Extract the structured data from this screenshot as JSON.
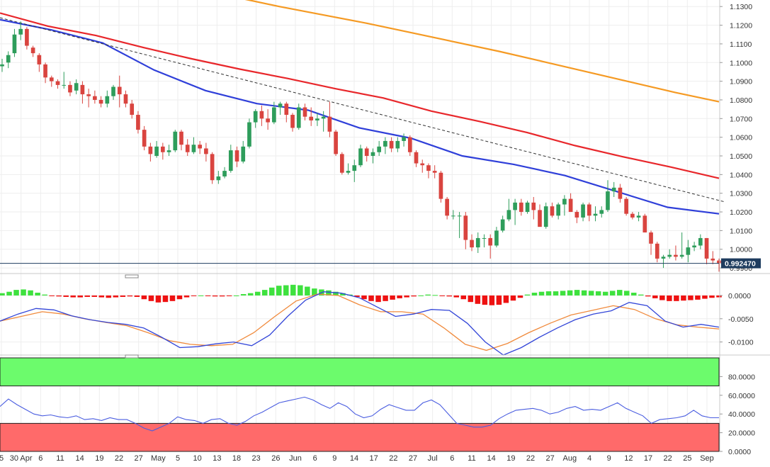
{
  "chart_data": {
    "type": "candlestick",
    "instrument_price_label": "0.992470",
    "colors": {
      "up": "#2e9d5b",
      "down": "#d9443f",
      "sma_red": "#e8272b",
      "sma_orange": "#f59a23",
      "sma_blue": "#2f3fd9",
      "macd_pos": "#3ee13e",
      "macd_neg": "#ee1111",
      "rsi_high_zone": "#6cfb6c",
      "rsi_low_zone": "#ff6a6a",
      "rsi_line": "#4a5de0",
      "price_tag_bg": "#1e3c5f"
    },
    "x_labels": [
      "5",
      "30 Apr",
      "6",
      "11",
      "14",
      "19",
      "22",
      "27",
      "May",
      "5",
      "10",
      "13",
      "18",
      "23",
      "26",
      "Jun",
      "6",
      "9",
      "14",
      "17",
      "22",
      "27",
      "Jul",
      "6",
      "11",
      "14",
      "19",
      "22",
      "27",
      "Aug",
      "4",
      "9",
      "12",
      "17",
      "22",
      "25",
      "Sep"
    ],
    "price_panel": {
      "yticks": [
        "1.1300",
        "1.1200",
        "1.1100",
        "1.1000",
        "1.0900",
        "1.0800",
        "1.0700",
        "1.0600",
        "1.0500",
        "1.0400",
        "1.0300",
        "1.0200",
        "1.0100",
        "1.0000",
        "0.9900"
      ],
      "ytick_values": [
        1.13,
        1.12,
        1.11,
        1.1,
        1.09,
        1.08,
        1.07,
        1.06,
        1.05,
        1.04,
        1.03,
        1.02,
        1.01,
        1.0,
        0.99
      ],
      "ylim": [
        0.987,
        1.1335
      ],
      "current_price": 0.99247,
      "candles": [
        [
          1.098,
          1.102,
          1.095,
          1.099
        ],
        [
          1.1,
          1.106,
          1.097,
          1.104
        ],
        [
          1.105,
          1.118,
          1.103,
          1.115
        ],
        [
          1.115,
          1.122,
          1.112,
          1.118
        ],
        [
          1.118,
          1.119,
          1.107,
          1.109
        ],
        [
          1.108,
          1.109,
          1.103,
          1.105
        ],
        [
          1.104,
          1.105,
          1.095,
          1.099
        ],
        [
          1.099,
          1.1,
          1.089,
          1.092
        ],
        [
          1.092,
          1.093,
          1.087,
          1.09
        ],
        [
          1.09,
          1.091,
          1.086,
          1.088
        ],
        [
          1.088,
          1.095,
          1.086,
          1.088
        ],
        [
          1.088,
          1.09,
          1.082,
          1.084
        ],
        [
          1.085,
          1.091,
          1.083,
          1.089
        ],
        [
          1.088,
          1.09,
          1.078,
          1.083
        ],
        [
          1.083,
          1.086,
          1.076,
          1.082
        ],
        [
          1.082,
          1.085,
          1.078,
          1.08
        ],
        [
          1.08,
          1.082,
          1.076,
          1.078
        ],
        [
          1.078,
          1.085,
          1.076,
          1.082
        ],
        [
          1.082,
          1.088,
          1.08,
          1.087
        ],
        [
          1.087,
          1.093,
          1.076,
          1.083
        ],
        [
          1.083,
          1.085,
          1.076,
          1.078
        ],
        [
          1.078,
          1.08,
          1.07,
          1.072
        ],
        [
          1.072,
          1.074,
          1.062,
          1.064
        ],
        [
          1.064,
          1.066,
          1.053,
          1.055
        ],
        [
          1.055,
          1.057,
          1.047,
          1.051
        ],
        [
          1.05,
          1.058,
          1.049,
          1.055
        ],
        [
          1.055,
          1.057,
          1.048,
          1.052
        ],
        [
          1.052,
          1.056,
          1.05,
          1.053
        ],
        [
          1.053,
          1.064,
          1.052,
          1.063
        ],
        [
          1.063,
          1.064,
          1.053,
          1.056
        ],
        [
          1.056,
          1.059,
          1.05,
          1.052
        ],
        [
          1.052,
          1.06,
          1.051,
          1.056
        ],
        [
          1.056,
          1.058,
          1.051,
          1.054
        ],
        [
          1.054,
          1.057,
          1.047,
          1.051
        ],
        [
          1.051,
          1.052,
          1.035,
          1.037
        ],
        [
          1.037,
          1.042,
          1.035,
          1.039
        ],
        [
          1.039,
          1.044,
          1.038,
          1.042
        ],
        [
          1.042,
          1.056,
          1.041,
          1.053
        ],
        [
          1.053,
          1.055,
          1.044,
          1.047
        ],
        [
          1.047,
          1.058,
          1.046,
          1.055
        ],
        [
          1.055,
          1.07,
          1.054,
          1.068
        ],
        [
          1.068,
          1.075,
          1.065,
          1.074
        ],
        [
          1.074,
          1.077,
          1.066,
          1.07
        ],
        [
          1.07,
          1.075,
          1.064,
          1.068
        ],
        [
          1.068,
          1.079,
          1.067,
          1.076
        ],
        [
          1.076,
          1.079,
          1.072,
          1.078
        ],
        [
          1.078,
          1.079,
          1.068,
          1.072
        ],
        [
          1.072,
          1.073,
          1.063,
          1.065
        ],
        [
          1.065,
          1.078,
          1.064,
          1.076
        ],
        [
          1.076,
          1.078,
          1.069,
          1.071
        ],
        [
          1.071,
          1.076,
          1.066,
          1.069
        ],
        [
          1.069,
          1.073,
          1.066,
          1.07
        ],
        [
          1.07,
          1.074,
          1.063,
          1.071
        ],
        [
          1.071,
          1.079,
          1.06,
          1.063
        ],
        [
          1.063,
          1.064,
          1.05,
          1.051
        ],
        [
          1.051,
          1.052,
          1.04,
          1.041
        ],
        [
          1.041,
          1.046,
          1.04,
          1.042
        ],
        [
          1.042,
          1.048,
          1.036,
          1.045
        ],
        [
          1.045,
          1.056,
          1.044,
          1.054
        ],
        [
          1.054,
          1.055,
          1.047,
          1.05
        ],
        [
          1.05,
          1.054,
          1.046,
          1.052
        ],
        [
          1.052,
          1.058,
          1.05,
          1.055
        ],
        [
          1.055,
          1.06,
          1.051,
          1.058
        ],
        [
          1.058,
          1.06,
          1.052,
          1.054
        ],
        [
          1.054,
          1.06,
          1.052,
          1.058
        ],
        [
          1.058,
          1.062,
          1.055,
          1.06
        ],
        [
          1.06,
          1.061,
          1.05,
          1.052
        ],
        [
          1.052,
          1.053,
          1.044,
          1.046
        ],
        [
          1.046,
          1.048,
          1.041,
          1.045
        ],
        [
          1.045,
          1.046,
          1.038,
          1.042
        ],
        [
          1.042,
          1.045,
          1.038,
          1.041
        ],
        [
          1.041,
          1.042,
          1.025,
          1.027
        ],
        [
          1.027,
          1.028,
          1.016,
          1.018
        ],
        [
          1.018,
          1.021,
          1.016,
          1.018
        ],
        [
          1.018,
          1.02,
          1.006,
          1.018
        ],
        [
          1.018,
          1.02,
          1.0,
          1.005
        ],
        [
          1.005,
          1.008,
          0.999,
          1.001
        ],
        [
          1.001,
          1.009,
          0.998,
          1.006
        ],
        [
          1.006,
          1.008,
          1.001,
          1.006
        ],
        [
          1.006,
          1.008,
          0.995,
          1.002
        ],
        [
          1.002,
          1.012,
          1.001,
          1.01
        ],
        [
          1.01,
          1.018,
          1.009,
          1.016
        ],
        [
          1.016,
          1.027,
          1.015,
          1.021
        ],
        [
          1.021,
          1.027,
          1.013,
          1.025
        ],
        [
          1.025,
          1.027,
          1.018,
          1.02
        ],
        [
          1.02,
          1.026,
          1.019,
          1.025
        ],
        [
          1.025,
          1.028,
          1.016,
          1.021
        ],
        [
          1.021,
          1.024,
          1.013,
          1.012
        ],
        [
          1.012,
          1.025,
          1.011,
          1.023
        ],
        [
          1.023,
          1.025,
          1.017,
          1.018
        ],
        [
          1.018,
          1.025,
          1.016,
          1.024
        ],
        [
          1.024,
          1.029,
          1.018,
          1.027
        ],
        [
          1.027,
          1.03,
          1.02,
          1.02
        ],
        [
          1.02,
          1.021,
          1.014,
          1.017
        ],
        [
          1.017,
          1.025,
          1.015,
          1.024
        ],
        [
          1.024,
          1.025,
          1.015,
          1.018
        ],
        [
          1.018,
          1.023,
          1.015,
          1.019
        ],
        [
          1.019,
          1.023,
          1.017,
          1.021
        ],
        [
          1.021,
          1.037,
          1.02,
          1.031
        ],
        [
          1.031,
          1.036,
          1.028,
          1.033
        ],
        [
          1.033,
          1.035,
          1.025,
          1.027
        ],
        [
          1.027,
          1.028,
          1.018,
          1.019
        ],
        [
          1.019,
          1.02,
          1.016,
          1.017
        ],
        [
          1.017,
          1.02,
          1.015,
          1.018
        ],
        [
          1.018,
          1.019,
          1.009,
          1.009
        ],
        [
          1.009,
          1.01,
          0.997,
          1.003
        ],
        [
          1.003,
          1.004,
          0.993,
          0.995
        ],
        [
          0.995,
          0.997,
          0.99,
          0.996
        ],
        [
          0.996,
          1.0,
          0.995,
          0.997
        ],
        [
          0.997,
          1.002,
          0.994,
          0.996
        ],
        [
          0.996,
          1.009,
          0.995,
          0.997
        ],
        [
          0.997,
          1.005,
          0.993,
          1.001
        ],
        [
          1.001,
          1.004,
          0.999,
          1.002
        ],
        [
          1.002,
          1.008,
          1.0,
          1.006
        ],
        [
          1.006,
          1.006,
          0.992,
          0.995
        ],
        [
          0.995,
          0.999,
          0.992,
          0.994
        ],
        [
          0.994,
          0.995,
          0.988,
          0.9925
        ]
      ],
      "sma_red": [
        1.1265,
        1.1195,
        1.1145,
        1.108,
        1.102,
        1.0965,
        1.0915,
        1.086,
        1.081,
        1.074,
        1.0685,
        1.0625,
        1.0555,
        1.0495,
        1.044,
        1.038
      ],
      "sma_orange": [
        1.139,
        1.135,
        1.13,
        1.1255,
        1.121,
        1.116,
        1.111,
        1.106,
        1.1005,
        1.095,
        1.0895,
        1.084,
        1.079
      ],
      "sma_blue": [
        1.123,
        1.1175,
        1.1105,
        1.096,
        1.085,
        1.078,
        1.0745,
        1.065,
        1.0595,
        1.05,
        1.0455,
        1.0395,
        1.031,
        1.0225,
        1.019
      ],
      "trendline": [
        1.124,
        1.0255
      ]
    },
    "macd_panel": {
      "yticks": [
        "0.0000",
        "-0.0050",
        "-0.0100"
      ],
      "ytick_values": [
        0.0,
        -0.005,
        -0.01
      ],
      "ylim": [
        -0.0125,
        0.0035
      ],
      "histogram": [
        0.0005,
        0.0008,
        0.0012,
        0.0013,
        0.0011,
        0.0006,
        0.0002,
        -0.0001,
        -0.0002,
        -0.0003,
        -0.0004,
        -0.0004,
        -0.0003,
        -0.0003,
        -0.0004,
        -0.0005,
        -0.0004,
        -0.0003,
        -0.0002,
        -0.0003,
        -0.0008,
        -0.0012,
        -0.0015,
        -0.0014,
        -0.0012,
        -0.0008,
        -0.0004,
        -0.0001,
        0.0,
        -0.0001,
        -0.0002,
        -0.0002,
        -0.0001,
        0.0,
        0.0003,
        0.0005,
        0.0008,
        0.0012,
        0.0017,
        0.0021,
        0.0022,
        0.0023,
        0.0022,
        0.0019,
        0.0015,
        0.0013,
        0.0011,
        0.0008,
        0.0005,
        0.0002,
        -0.0003,
        -0.0008,
        -0.0012,
        -0.0014,
        -0.0012,
        -0.0009,
        -0.0006,
        -0.0004,
        -0.0002,
        0.0,
        0.0002,
        0.0001,
        -0.0001,
        -0.0002,
        -0.0004,
        -0.0008,
        -0.0014,
        -0.0018,
        -0.002,
        -0.0021,
        -0.002,
        -0.0016,
        -0.0011,
        -0.0005,
        0.0002,
        0.0006,
        0.0008,
        0.0009,
        0.0009,
        0.001,
        0.0011,
        0.0012,
        0.0011,
        0.001,
        0.0009,
        0.0008,
        0.001,
        0.0012,
        0.001,
        0.0006,
        0.0002,
        -0.0002,
        -0.0006,
        -0.001,
        -0.0012,
        -0.0012,
        -0.0011,
        -0.001,
        -0.0009,
        -0.0007,
        -0.0005,
        -0.0004
      ],
      "macd_line": [
        -0.0055,
        -0.004,
        -0.0028,
        -0.0031,
        -0.0044,
        -0.0052,
        -0.0058,
        -0.0062,
        -0.007,
        -0.009,
        -0.0112,
        -0.011,
        -0.0104,
        -0.01,
        -0.0108,
        -0.0085,
        -0.0045,
        -0.001,
        0.0008,
        0.0005,
        -0.0005,
        -0.0025,
        -0.0045,
        -0.004,
        -0.003,
        -0.0032,
        -0.006,
        -0.01,
        -0.0128,
        -0.0112,
        -0.009,
        -0.007,
        -0.0052,
        -0.004,
        -0.0033,
        -0.0015,
        -0.0022,
        -0.0055,
        -0.0068,
        -0.0062,
        -0.0068
      ],
      "signal_line": [
        -0.0055,
        -0.0045,
        -0.0035,
        -0.004,
        -0.005,
        -0.0058,
        -0.0065,
        -0.008,
        -0.0097,
        -0.0105,
        -0.0108,
        -0.0105,
        -0.008,
        -0.0045,
        -0.0012,
        0.0003,
        0.0,
        -0.002,
        -0.0035,
        -0.0035,
        -0.004,
        -0.007,
        -0.0105,
        -0.0118,
        -0.0103,
        -0.008,
        -0.006,
        -0.0042,
        -0.0032,
        -0.0022,
        -0.003,
        -0.005,
        -0.0063,
        -0.0068,
        -0.0072
      ]
    },
    "rsi_panel": {
      "yticks": [
        "80.0000",
        "60.0000",
        "40.0000",
        "20.0000",
        "0.0000"
      ],
      "ytick_values": [
        80,
        60,
        40,
        20,
        0
      ],
      "ylim": [
        0,
        100
      ],
      "zone_high": [
        70,
        100
      ],
      "zone_low": [
        0,
        30
      ],
      "rsi_line": [
        48,
        56,
        50,
        45,
        40,
        38,
        39,
        37,
        36,
        38,
        34,
        35,
        33,
        36,
        34,
        34,
        30,
        25,
        22,
        26,
        30,
        37,
        34,
        33,
        30,
        34,
        35,
        30,
        28,
        32,
        38,
        42,
        47,
        52,
        54,
        56,
        58,
        55,
        50,
        46,
        52,
        48,
        40,
        36,
        38,
        45,
        50,
        47,
        44,
        44,
        52,
        55,
        50,
        40,
        30,
        28,
        26,
        26,
        28,
        35,
        40,
        44,
        45,
        46,
        44,
        40,
        42,
        46,
        48,
        44,
        45,
        44,
        48,
        52,
        46,
        42,
        38,
        30,
        34,
        35,
        36,
        38,
        44,
        38,
        36,
        36
      ]
    }
  }
}
